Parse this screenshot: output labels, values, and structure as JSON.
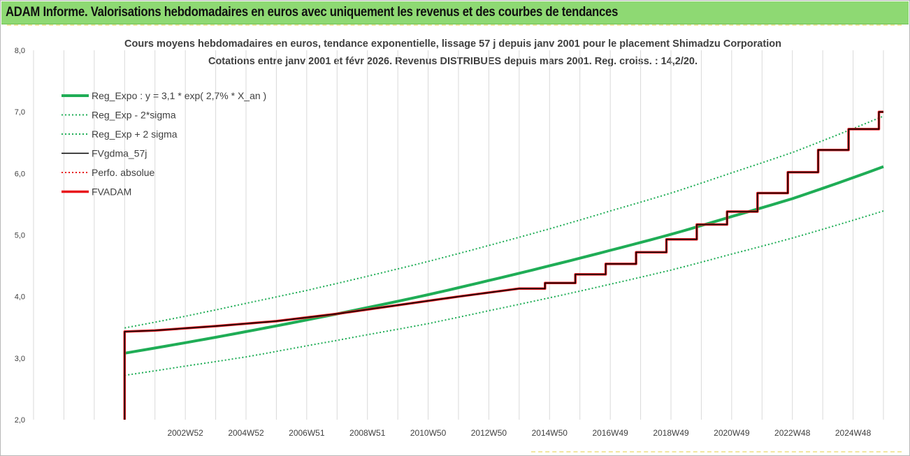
{
  "window": {
    "title": "ADAM Informe. Valorisations hebdomadaires en euros avec uniquement les revenus et des courbes de tendances"
  },
  "colors": {
    "title_bar": "#8ed973",
    "reg_expo": "#1fad56",
    "sigma": "#1fad56",
    "fvgdma": "#000000",
    "perfo": "#e8161b",
    "fvadam": "#e8161b",
    "grid": "#d9d9d9",
    "text": "#404040"
  },
  "chart_data": {
    "type": "line",
    "title": "Cours moyens hebdomadaires en euros, tendance exponentielle, lissage 57 j depuis janv 2001 pour le placement Shimadzu Corporation",
    "subtitle": "Cotations entre janv 2001 et févr 2026. Revenus DISTRIBUES depuis mars 2001. Reg. croiss. : 14,2/20.",
    "xlabel": "",
    "ylabel": "",
    "ylim": [
      2.0,
      8.0
    ],
    "yticks": [
      "2,0",
      "3,0",
      "4,0",
      "5,0",
      "6,0",
      "7,0",
      "8,0"
    ],
    "xlim": [
      1998.0,
      2026.0
    ],
    "xticks": [
      {
        "label": "2002W52",
        "x": 2003.0
      },
      {
        "label": "2004W52",
        "x": 2005.0
      },
      {
        "label": "2006W51",
        "x": 2007.0
      },
      {
        "label": "2008W51",
        "x": 2009.0
      },
      {
        "label": "2010W50",
        "x": 2011.0
      },
      {
        "label": "2012W50",
        "x": 2013.0
      },
      {
        "label": "2014W50",
        "x": 2015.0
      },
      {
        "label": "2016W49",
        "x": 2017.0
      },
      {
        "label": "2018W49",
        "x": 2019.0
      },
      {
        "label": "2020W49",
        "x": 2021.0
      },
      {
        "label": "2022W48",
        "x": 2023.0
      },
      {
        "label": "2024W48",
        "x": 2025.0
      }
    ],
    "grid": "vertical",
    "legend_position": "top-left",
    "series": [
      {
        "name": "Reg_Expo : y = 3,1 * exp( 2,7% *  X_an )",
        "style": "solid-thick",
        "color": "#1fad56",
        "x": [
          2001.0,
          2003.0,
          2005.0,
          2007.0,
          2009.0,
          2011.0,
          2013.0,
          2015.0,
          2017.0,
          2019.0,
          2021.0,
          2023.0,
          2026.0
        ],
        "y": [
          3.08,
          3.25,
          3.43,
          3.62,
          3.82,
          4.03,
          4.26,
          4.5,
          4.75,
          5.01,
          5.3,
          5.59,
          6.11
        ]
      },
      {
        "name": "Reg_Exp - 2*sigma",
        "style": "dotted",
        "color": "#1fad56",
        "x": [
          2001.0,
          2003.0,
          2005.0,
          2007.0,
          2009.0,
          2011.0,
          2013.0,
          2015.0,
          2017.0,
          2019.0,
          2021.0,
          2023.0,
          2026.0
        ],
        "y": [
          2.72,
          2.87,
          3.02,
          3.2,
          3.38,
          3.56,
          3.77,
          3.98,
          4.2,
          4.43,
          4.69,
          4.95,
          5.39
        ]
      },
      {
        "name": "Reg_Exp + 2 sigma",
        "style": "dotted",
        "color": "#1fad56",
        "x": [
          2001.0,
          2003.0,
          2005.0,
          2007.0,
          2009.0,
          2011.0,
          2013.0,
          2015.0,
          2017.0,
          2019.0,
          2021.0,
          2023.0,
          2026.0
        ],
        "y": [
          3.49,
          3.68,
          3.89,
          4.1,
          4.33,
          4.57,
          4.83,
          5.1,
          5.39,
          5.68,
          6.01,
          6.34,
          6.93
        ]
      },
      {
        "name": "FVgdma_57j",
        "style": "solid",
        "color": "#000000",
        "x": [
          2001.0,
          2001.0,
          2002.0,
          2004.0,
          2006.0,
          2008.0,
          2010.0,
          2012.0,
          2014.0,
          2015.0,
          2016.0,
          2017.0,
          2018.0,
          2019.0,
          2020.0,
          2021.0,
          2022.0,
          2023.0,
          2024.0,
          2025.0,
          2026.0
        ],
        "y": [
          2.0,
          3.43,
          3.45,
          3.52,
          3.6,
          3.72,
          3.86,
          4.0,
          4.13,
          4.22,
          4.36,
          4.53,
          4.72,
          4.93,
          5.17,
          5.38,
          5.68,
          6.02,
          6.38,
          6.72,
          7.0
        ]
      },
      {
        "name": "Perfo. absolue",
        "style": "dotted",
        "color": "#e8161b",
        "x": [
          2001.0,
          2001.0,
          2002.0,
          2004.0,
          2006.0,
          2008.0,
          2010.0,
          2012.0,
          2014.0,
          2015.0,
          2016.0,
          2017.0,
          2018.0,
          2019.0,
          2020.0,
          2021.0,
          2022.0,
          2023.0,
          2024.0,
          2025.0,
          2026.0
        ],
        "y": [
          2.0,
          3.43,
          3.45,
          3.52,
          3.6,
          3.72,
          3.86,
          4.0,
          4.13,
          4.22,
          4.36,
          4.53,
          4.72,
          4.93,
          5.17,
          5.38,
          5.68,
          6.02,
          6.38,
          6.72,
          7.0
        ]
      },
      {
        "name": "FVADAM",
        "style": "step-thick",
        "color": "#e8161b",
        "x": [
          2001.0,
          2001.0,
          2002.0,
          2004.0,
          2006.0,
          2008.0,
          2010.0,
          2012.0,
          2014.0,
          2015.0,
          2016.0,
          2017.0,
          2018.0,
          2019.0,
          2020.0,
          2021.0,
          2022.0,
          2023.0,
          2024.0,
          2025.0,
          2026.0
        ],
        "y": [
          2.0,
          3.43,
          3.45,
          3.52,
          3.6,
          3.72,
          3.86,
          4.0,
          4.13,
          4.22,
          4.36,
          4.53,
          4.72,
          4.93,
          5.17,
          5.38,
          5.68,
          6.02,
          6.38,
          6.72,
          7.0
        ]
      }
    ]
  }
}
